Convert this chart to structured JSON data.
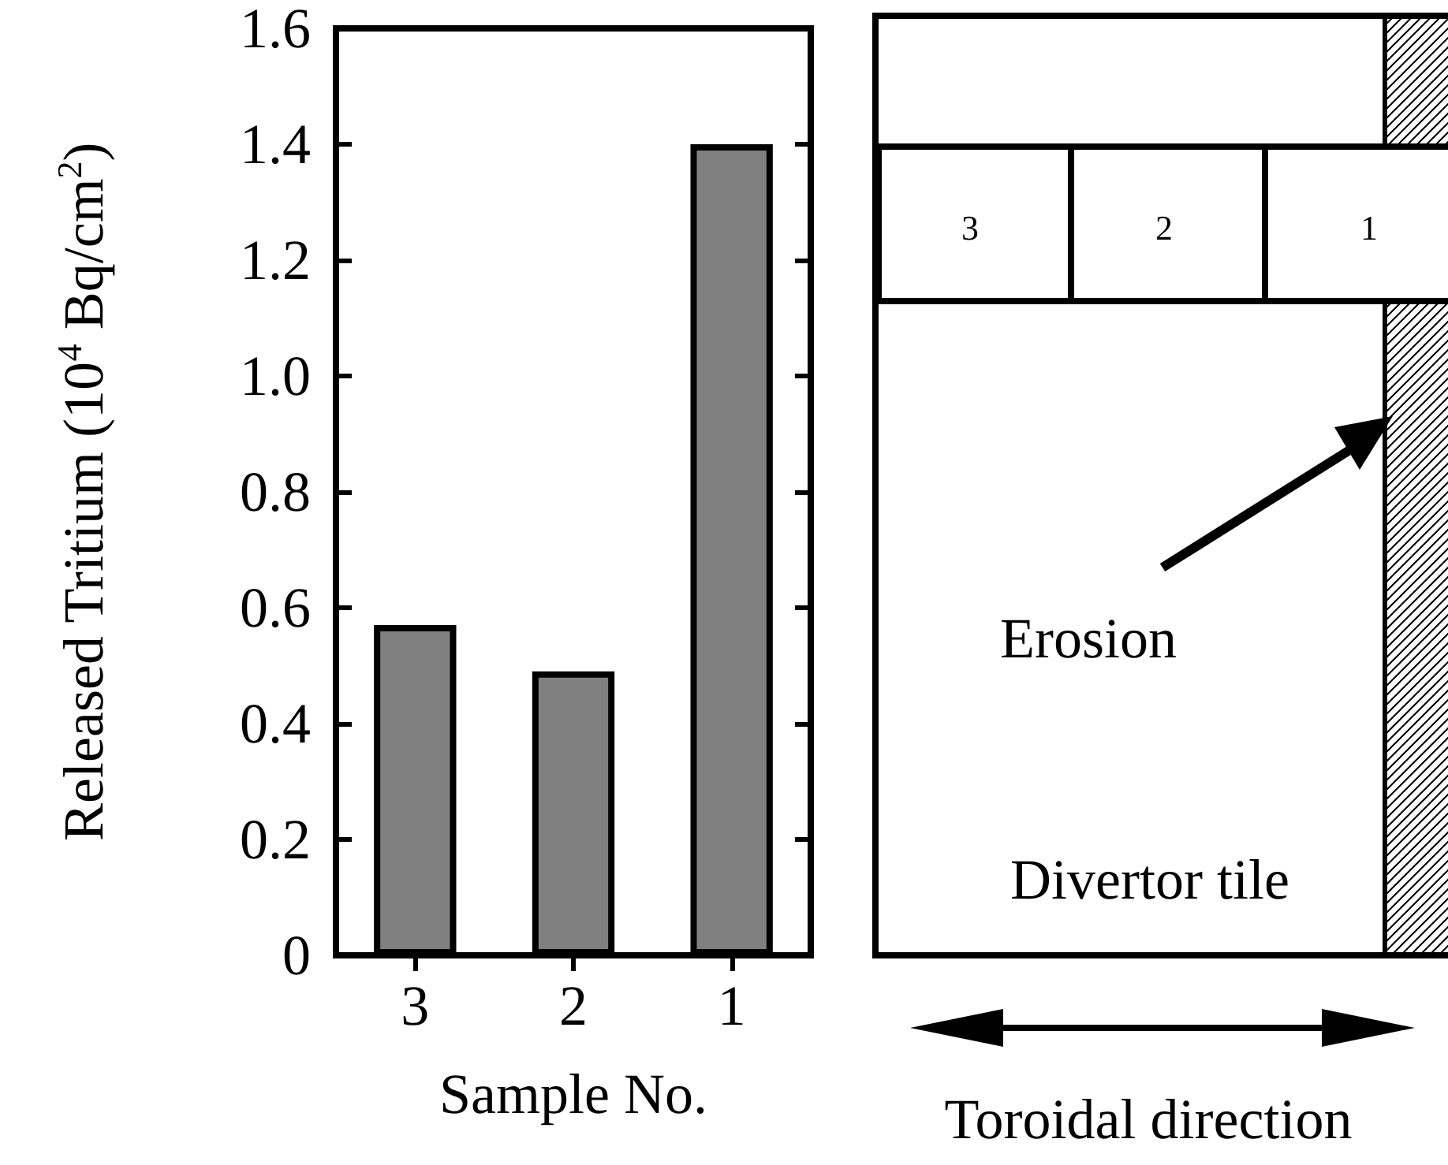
{
  "chart_data": [
    {
      "type": "bar",
      "xlabel": "Sample No.",
      "ylabel": "Released Tritium (10$^{4}$ Bq/cm$^{2}$)",
      "categories": [
        "3",
        "2",
        "1"
      ],
      "values": [
        0.57,
        0.49,
        1.4
      ],
      "color": "#808080",
      "ylim": [
        0,
        1.6
      ],
      "yticks": [
        0,
        0.2,
        0.4,
        0.6,
        0.8,
        {
          "value": 1,
          "label": "1.0"
        },
        1.2,
        1.4,
        1.6
      ],
      "grid": false
    },
    {
      "type": "other",
      "annotations": [
        "3",
        "2",
        "1",
        "Erosion",
        "Divertor tile",
        "Toroidal direction"
      ]
    }
  ]
}
